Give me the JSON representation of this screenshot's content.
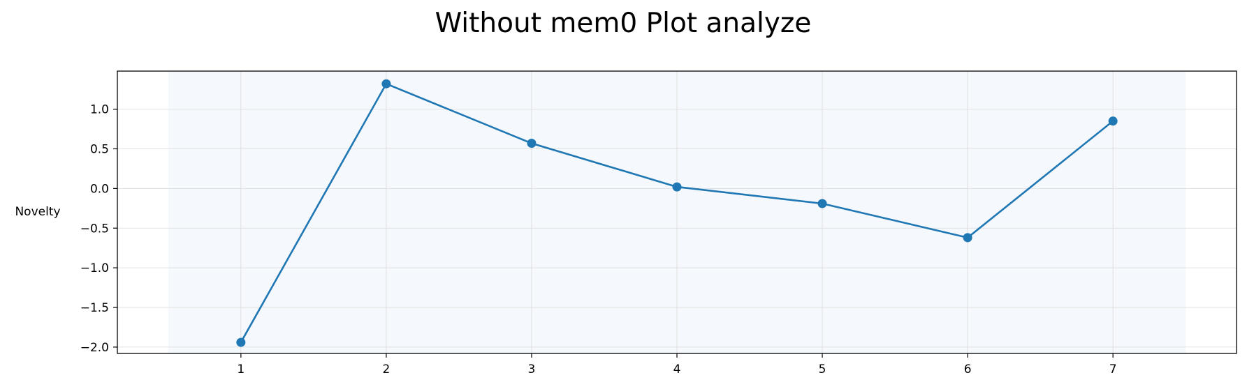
{
  "chart_data": {
    "type": "line",
    "title": "Without mem0 Plot analyze",
    "xlabel": "",
    "ylabel": "Novelty",
    "x": [
      1,
      2,
      3,
      4,
      5,
      6,
      7
    ],
    "series": [
      {
        "values": [
          -1.94,
          1.32,
          0.57,
          0.02,
          -0.19,
          -0.62,
          0.85
        ],
        "color": "#1f77b4"
      }
    ],
    "xlim": [
      0.15,
      7.85
    ],
    "ylim": [
      -2.08,
      1.48
    ],
    "xticks": [
      1,
      2,
      3,
      4,
      5,
      6,
      7
    ],
    "yticks": [
      1.0,
      0.5,
      0.0,
      -0.5,
      -1.0,
      -1.5,
      -2.0
    ],
    "ytick_labels": [
      "1.0",
      "0.5",
      "0.0",
      "−0.5",
      "−1.0",
      "−1.5",
      "−2.0"
    ],
    "shaded_x_range": [
      0.5,
      7.5
    ],
    "shade_color": "#f5f8fc",
    "grid": true,
    "legend": "none"
  }
}
